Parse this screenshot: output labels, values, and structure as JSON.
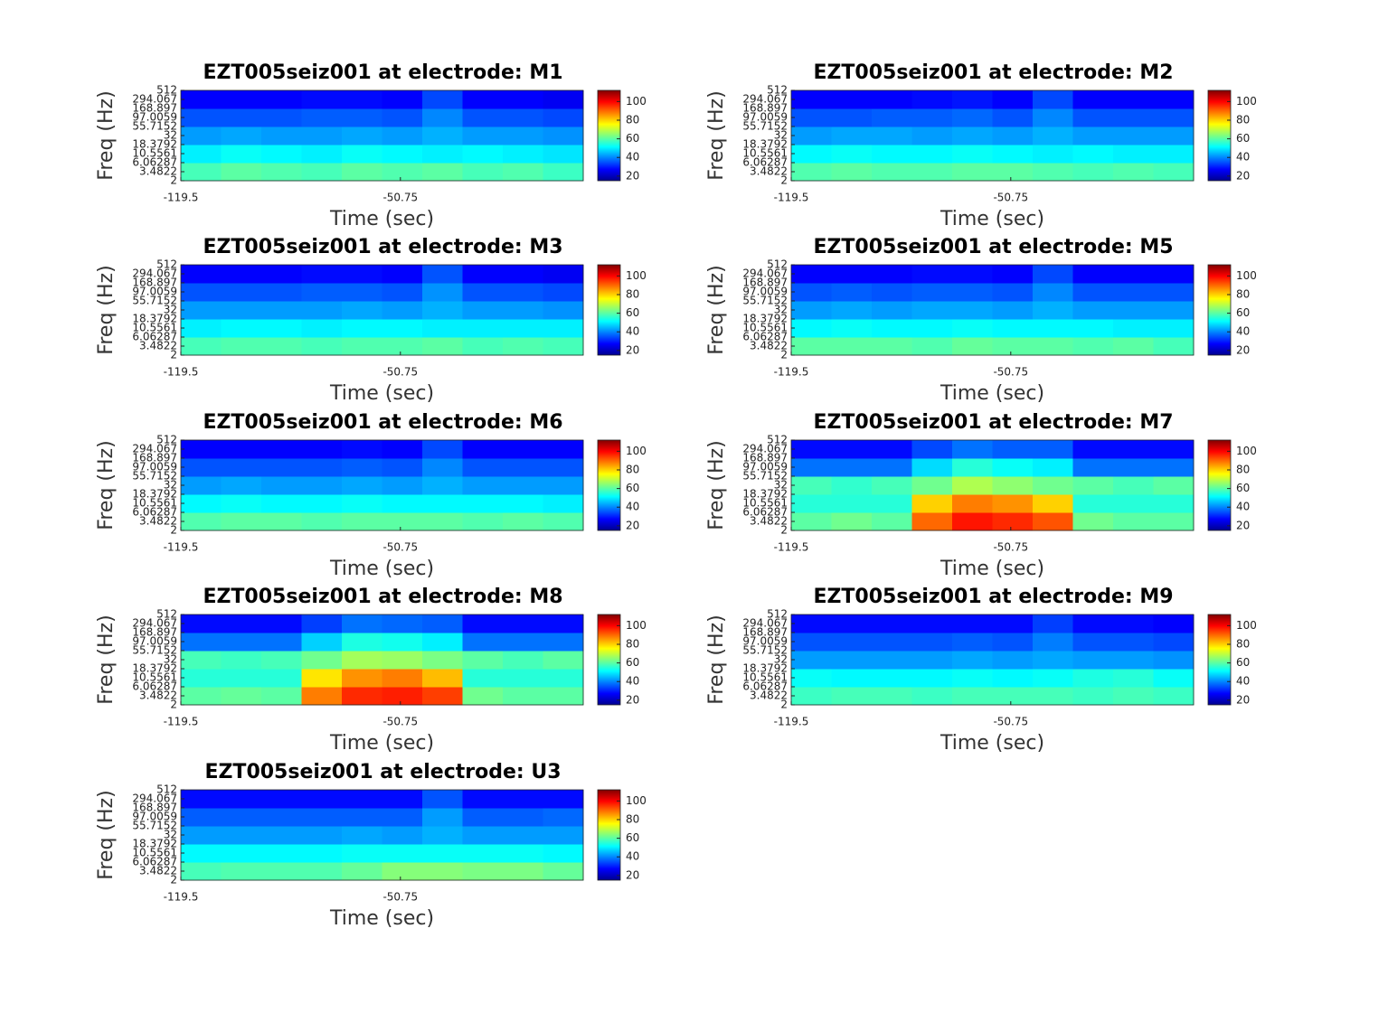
{
  "chart_data": [
    {
      "type": "heatmap",
      "title": "EZT005seiz001 at electrode: M1",
      "xlabel": "Time (sec)",
      "ylabel": "Freq (Hz)",
      "colormap": "jet",
      "ylog": true,
      "x_edges": [
        -119.5,
        -106.9,
        -94.3,
        -81.7,
        -69.1,
        -56.5,
        -43.9,
        -31.3,
        -18.7,
        -6.1,
        6.5
      ],
      "y_edges": [
        2,
        6.06287,
        18.3792,
        55.7152,
        168.897,
        512
      ],
      "z": [
        [
          58,
          60,
          59,
          58,
          60,
          59,
          60,
          58,
          59,
          57
        ],
        [
          50,
          52,
          51,
          50,
          52,
          51,
          50,
          51,
          50,
          49
        ],
        [
          42,
          43,
          42,
          42,
          43,
          42,
          44,
          42,
          42,
          41
        ],
        [
          35,
          35,
          35,
          36,
          36,
          35,
          40,
          35,
          35,
          34
        ],
        [
          27,
          27,
          27,
          28,
          28,
          27,
          34,
          27,
          27,
          26
        ]
      ],
      "xlim": [
        -119.5,
        6.5
      ],
      "ylim": [
        2,
        512
      ],
      "xticks": [
        -119.5,
        -50.75
      ],
      "yticks": [
        2,
        3.4822,
        6.06287,
        10.5561,
        18.3792,
        32,
        55.7152,
        97.0059,
        168.897,
        294.067,
        512
      ],
      "clim": [
        15,
        112
      ],
      "cticks": [
        20,
        40,
        60,
        80,
        100
      ]
    },
    {
      "type": "heatmap",
      "title": "EZT005seiz001 at electrode: M2",
      "xlabel": "Time (sec)",
      "ylabel": "Freq (Hz)",
      "colormap": "jet",
      "ylog": true,
      "x_edges": [
        -119.5,
        -106.9,
        -94.3,
        -81.7,
        -69.1,
        -56.5,
        -43.9,
        -31.3,
        -18.7,
        -6.1,
        6.5
      ],
      "y_edges": [
        2,
        6.06287,
        18.3792,
        55.7152,
        168.897,
        512
      ],
      "z": [
        [
          59,
          60,
          59,
          59,
          60,
          60,
          59,
          58,
          59,
          58
        ],
        [
          51,
          52,
          51,
          51,
          52,
          51,
          50,
          51,
          50,
          50
        ],
        [
          42,
          43,
          43,
          42,
          43,
          42,
          44,
          42,
          42,
          42
        ],
        [
          35,
          35,
          36,
          36,
          37,
          35,
          40,
          35,
          35,
          35
        ],
        [
          27,
          27,
          27,
          28,
          29,
          27,
          34,
          27,
          27,
          27
        ]
      ],
      "xlim": [
        -119.5,
        6.5
      ],
      "ylim": [
        2,
        512
      ],
      "xticks": [
        -119.5,
        -50.75
      ],
      "yticks": [
        2,
        3.4822,
        6.06287,
        10.5561,
        18.3792,
        32,
        55.7152,
        97.0059,
        168.897,
        294.067,
        512
      ],
      "clim": [
        15,
        112
      ],
      "cticks": [
        20,
        40,
        60,
        80,
        100
      ]
    },
    {
      "type": "heatmap",
      "title": "EZT005seiz001 at electrode: M3",
      "xlabel": "Time (sec)",
      "ylabel": "Freq (Hz)",
      "colormap": "jet",
      "ylog": true,
      "x_edges": [
        -119.5,
        -106.9,
        -94.3,
        -81.7,
        -69.1,
        -56.5,
        -43.9,
        -31.3,
        -18.7,
        -6.1,
        6.5
      ],
      "y_edges": [
        2,
        6.06287,
        18.3792,
        55.7152,
        168.897,
        512
      ],
      "z": [
        [
          58,
          59,
          59,
          58,
          59,
          59,
          60,
          58,
          59,
          58
        ],
        [
          50,
          51,
          51,
          50,
          51,
          51,
          50,
          50,
          50,
          50
        ],
        [
          42,
          42,
          42,
          42,
          43,
          42,
          44,
          42,
          42,
          41
        ],
        [
          35,
          35,
          35,
          36,
          36,
          35,
          41,
          35,
          35,
          34
        ],
        [
          27,
          27,
          27,
          28,
          28,
          27,
          35,
          27,
          27,
          26
        ]
      ],
      "xlim": [
        -119.5,
        6.5
      ],
      "ylim": [
        2,
        512
      ],
      "xticks": [
        -119.5,
        -50.75
      ],
      "yticks": [
        2,
        3.4822,
        6.06287,
        10.5561,
        18.3792,
        32,
        55.7152,
        97.0059,
        168.897,
        294.067,
        512
      ],
      "clim": [
        15,
        112
      ],
      "cticks": [
        20,
        40,
        60,
        80,
        100
      ]
    },
    {
      "type": "heatmap",
      "title": "EZT005seiz001 at electrode: M5",
      "xlabel": "Time (sec)",
      "ylabel": "Freq (Hz)",
      "colormap": "jet",
      "ylog": true,
      "x_edges": [
        -119.5,
        -106.9,
        -94.3,
        -81.7,
        -69.1,
        -56.5,
        -43.9,
        -31.3,
        -18.7,
        -6.1,
        6.5
      ],
      "y_edges": [
        2,
        6.06287,
        18.3792,
        55.7152,
        168.897,
        512
      ],
      "z": [
        [
          60,
          60,
          60,
          59,
          61,
          60,
          60,
          59,
          60,
          58
        ],
        [
          51,
          52,
          51,
          51,
          52,
          51,
          51,
          51,
          50,
          50
        ],
        [
          42,
          43,
          42,
          43,
          43,
          42,
          44,
          42,
          42,
          42
        ],
        [
          35,
          36,
          35,
          36,
          36,
          35,
          40,
          35,
          35,
          35
        ],
        [
          27,
          27,
          27,
          28,
          28,
          27,
          34,
          27,
          27,
          27
        ]
      ],
      "xlim": [
        -119.5,
        6.5
      ],
      "ylim": [
        2,
        512
      ],
      "xticks": [
        -119.5,
        -50.75
      ],
      "yticks": [
        2,
        3.4822,
        6.06287,
        10.5561,
        18.3792,
        32,
        55.7152,
        97.0059,
        168.897,
        294.067,
        512
      ],
      "clim": [
        15,
        112
      ],
      "cticks": [
        20,
        40,
        60,
        80,
        100
      ]
    },
    {
      "type": "heatmap",
      "title": "EZT005seiz001 at electrode: M6",
      "xlabel": "Time (sec)",
      "ylabel": "Freq (Hz)",
      "colormap": "jet",
      "ylog": true,
      "x_edges": [
        -119.5,
        -106.9,
        -94.3,
        -81.7,
        -69.1,
        -56.5,
        -43.9,
        -31.3,
        -18.7,
        -6.1,
        6.5
      ],
      "y_edges": [
        2,
        6.06287,
        18.3792,
        55.7152,
        168.897,
        512
      ],
      "z": [
        [
          59,
          60,
          60,
          59,
          60,
          60,
          60,
          59,
          60,
          59
        ],
        [
          51,
          52,
          51,
          51,
          52,
          51,
          51,
          51,
          51,
          50
        ],
        [
          42,
          43,
          42,
          42,
          43,
          42,
          44,
          42,
          42,
          42
        ],
        [
          35,
          35,
          35,
          35,
          36,
          35,
          40,
          35,
          35,
          35
        ],
        [
          27,
          27,
          27,
          27,
          28,
          27,
          34,
          27,
          27,
          27
        ]
      ],
      "xlim": [
        -119.5,
        6.5
      ],
      "ylim": [
        2,
        512
      ],
      "xticks": [
        -119.5,
        -50.75
      ],
      "yticks": [
        2,
        3.4822,
        6.06287,
        10.5561,
        18.3792,
        32,
        55.7152,
        97.0059,
        168.897,
        294.067,
        512
      ],
      "clim": [
        15,
        112
      ],
      "cticks": [
        20,
        40,
        60,
        80,
        100
      ]
    },
    {
      "type": "heatmap",
      "title": "EZT005seiz001 at electrode: M7",
      "xlabel": "Time (sec)",
      "ylabel": "Freq (Hz)",
      "colormap": "jet",
      "ylog": true,
      "x_edges": [
        -119.5,
        -106.9,
        -94.3,
        -81.7,
        -69.1,
        -56.5,
        -43.9,
        -31.3,
        -18.7,
        -6.1,
        6.5
      ],
      "y_edges": [
        2,
        6.06287,
        18.3792,
        55.7152,
        168.897,
        512
      ],
      "z": [
        [
          60,
          62,
          60,
          90,
          98,
          96,
          92,
          62,
          60,
          60
        ],
        [
          55,
          55,
          55,
          80,
          88,
          86,
          80,
          55,
          55,
          55
        ],
        [
          58,
          56,
          58,
          62,
          68,
          65,
          62,
          60,
          58,
          60
        ],
        [
          38,
          38,
          38,
          48,
          55,
          52,
          50,
          38,
          38,
          38
        ],
        [
          28,
          28,
          28,
          34,
          38,
          36,
          36,
          28,
          28,
          28
        ]
      ],
      "xlim": [
        -119.5,
        6.5
      ],
      "ylim": [
        2,
        512
      ],
      "xticks": [
        -119.5,
        -50.75
      ],
      "yticks": [
        2,
        3.4822,
        6.06287,
        10.5561,
        18.3792,
        32,
        55.7152,
        97.0059,
        168.897,
        294.067,
        512
      ],
      "clim": [
        15,
        112
      ],
      "cticks": [
        20,
        40,
        60,
        80,
        100
      ]
    },
    {
      "type": "heatmap",
      "title": "EZT005seiz001 at electrode: M8",
      "xlabel": "Time (sec)",
      "ylabel": "Freq (Hz)",
      "colormap": "jet",
      "ylog": true,
      "x_edges": [
        -119.5,
        -106.9,
        -94.3,
        -81.7,
        -69.1,
        -56.5,
        -43.9,
        -31.3,
        -18.7,
        -6.1,
        6.5
      ],
      "y_edges": [
        2,
        6.06287,
        18.3792,
        55.7152,
        168.897,
        512
      ],
      "z": [
        [
          60,
          61,
          60,
          88,
          96,
          97,
          94,
          62,
          60,
          60
        ],
        [
          55,
          55,
          55,
          78,
          86,
          88,
          82,
          55,
          55,
          55
        ],
        [
          58,
          57,
          58,
          62,
          67,
          66,
          63,
          60,
          58,
          60
        ],
        [
          38,
          38,
          38,
          47,
          54,
          53,
          50,
          38,
          38,
          38
        ],
        [
          28,
          28,
          28,
          33,
          38,
          37,
          36,
          28,
          28,
          28
        ]
      ],
      "xlim": [
        -119.5,
        6.5
      ],
      "ylim": [
        2,
        512
      ],
      "xticks": [
        -119.5,
        -50.75
      ],
      "yticks": [
        2,
        3.4822,
        6.06287,
        10.5561,
        18.3792,
        32,
        55.7152,
        97.0059,
        168.897,
        294.067,
        512
      ],
      "clim": [
        15,
        112
      ],
      "cticks": [
        20,
        40,
        60,
        80,
        100
      ]
    },
    {
      "type": "heatmap",
      "title": "EZT005seiz001 at electrode: M9",
      "xlabel": "Time (sec)",
      "ylabel": "Freq (Hz)",
      "colormap": "jet",
      "ylog": true,
      "x_edges": [
        -119.5,
        -106.9,
        -94.3,
        -81.7,
        -69.1,
        -56.5,
        -43.9,
        -31.3,
        -18.7,
        -6.1,
        6.5
      ],
      "y_edges": [
        2,
        6.06287,
        18.3792,
        55.7152,
        168.897,
        512
      ],
      "z": [
        [
          57,
          58,
          58,
          57,
          58,
          58,
          58,
          57,
          58,
          57
        ],
        [
          52,
          51,
          51,
          51,
          52,
          51,
          52,
          54,
          55,
          52
        ],
        [
          42,
          42,
          42,
          42,
          43,
          42,
          43,
          42,
          42,
          41
        ],
        [
          35,
          35,
          35,
          35,
          36,
          35,
          39,
          35,
          35,
          34
        ],
        [
          28,
          28,
          28,
          28,
          28,
          28,
          33,
          28,
          28,
          27
        ]
      ],
      "xlim": [
        -119.5,
        6.5
      ],
      "ylim": [
        2,
        512
      ],
      "xticks": [
        -119.5,
        -50.75
      ],
      "yticks": [
        2,
        3.4822,
        6.06287,
        10.5561,
        18.3792,
        32,
        55.7152,
        97.0059,
        168.897,
        294.067,
        512
      ],
      "clim": [
        15,
        112
      ],
      "cticks": [
        20,
        40,
        60,
        80,
        100
      ]
    },
    {
      "type": "heatmap",
      "title": "EZT005seiz001 at electrode: U3",
      "xlabel": "Time (sec)",
      "ylabel": "Freq (Hz)",
      "colormap": "jet",
      "ylog": true,
      "x_edges": [
        -119.5,
        -106.9,
        -94.3,
        -81.7,
        -69.1,
        -56.5,
        -43.9,
        -31.3,
        -18.7,
        -6.1,
        6.5
      ],
      "y_edges": [
        2,
        6.06287,
        18.3792,
        55.7152,
        168.897,
        512
      ],
      "z": [
        [
          58,
          59,
          59,
          59,
          61,
          64,
          64,
          63,
          63,
          61
        ],
        [
          51,
          51,
          51,
          51,
          52,
          52,
          52,
          52,
          52,
          51
        ],
        [
          42,
          42,
          42,
          42,
          43,
          42,
          44,
          42,
          42,
          42
        ],
        [
          36,
          36,
          36,
          36,
          36,
          36,
          42,
          36,
          36,
          37
        ],
        [
          28,
          28,
          28,
          28,
          28,
          28,
          35,
          28,
          28,
          28
        ]
      ],
      "xlim": [
        -119.5,
        6.5
      ],
      "ylim": [
        2,
        512
      ],
      "xticks": [
        -119.5,
        -50.75
      ],
      "yticks": [
        2,
        3.4822,
        6.06287,
        10.5561,
        18.3792,
        32,
        55.7152,
        97.0059,
        168.897,
        294.067,
        512
      ],
      "clim": [
        15,
        112
      ],
      "cticks": [
        20,
        40,
        60,
        80,
        100
      ]
    }
  ]
}
